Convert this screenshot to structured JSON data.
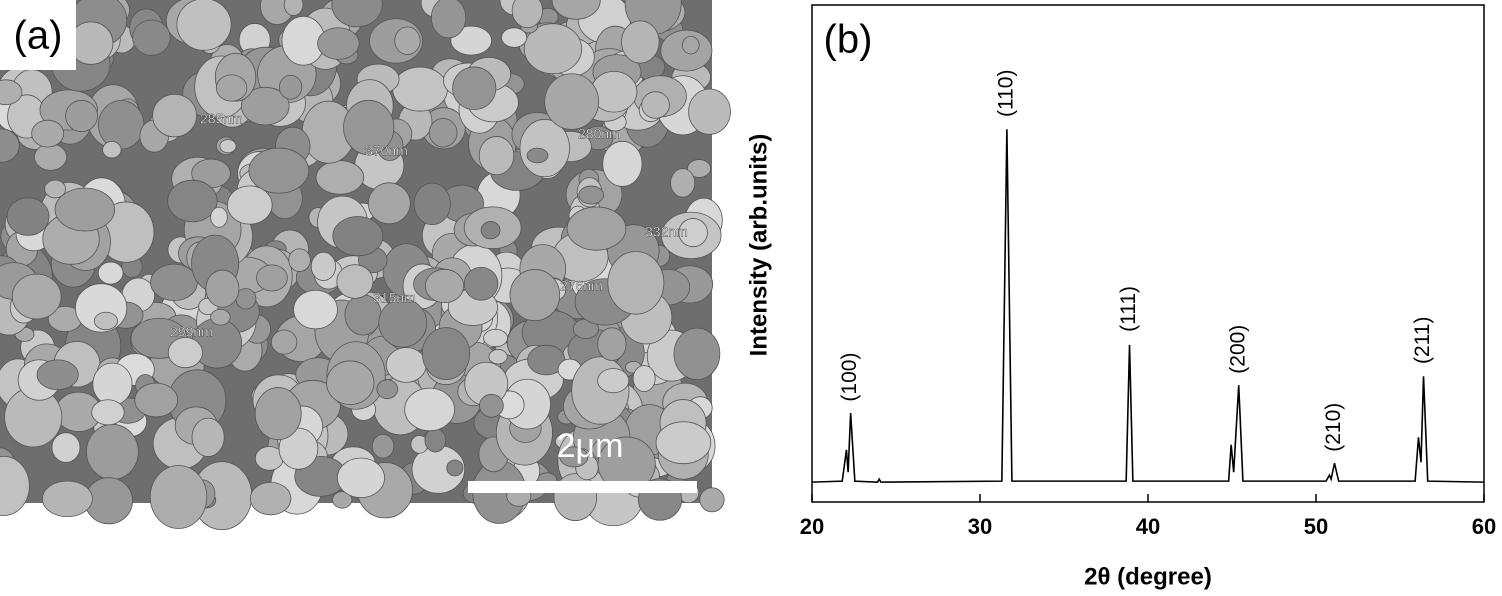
{
  "image_panel": {
    "label": "(a)",
    "scale_bar": "2μm",
    "measurements": [
      "285nm",
      "370nm",
      "280nm",
      "332nm",
      "276nm",
      "315nm",
      "299nm"
    ]
  },
  "chart_data": {
    "type": "line",
    "label": "(b)",
    "x_label": "2θ (degree)",
    "y_label": "Intensity (arb.units)",
    "xlim": [
      20,
      60
    ],
    "xticks": [
      20,
      30,
      40,
      50,
      60
    ],
    "ylim": [
      0,
      100
    ],
    "color": "#000000",
    "x": [
      20,
      21.8,
      22.05,
      22.15,
      22.3,
      22.55,
      23.9,
      24.0,
      24.1,
      31.3,
      31.6,
      31.9,
      38.7,
      38.9,
      39.1,
      44.8,
      44.95,
      45.1,
      45.4,
      45.65,
      50.6,
      50.8,
      50.9,
      51.1,
      51.35,
      55.9,
      56.1,
      56.25,
      56.4,
      56.65,
      60
    ],
    "values": [
      4,
      4.2,
      10.5,
      6,
      17.9,
      4.2,
      4,
      4.6,
      4,
      4.2,
      75,
      4.2,
      4.2,
      31.6,
      4.2,
      4.2,
      11.5,
      6,
      23.5,
      4.2,
      4.2,
      5.4,
      4.6,
      7.8,
      4.2,
      4.2,
      13,
      8,
      25.3,
      4.2,
      4
    ],
    "peak_labels": [
      {
        "label": "(100)",
        "x": 22.3
      },
      {
        "label": "(110)",
        "x": 31.6
      },
      {
        "label": "(111)",
        "x": 38.9
      },
      {
        "label": "(200)",
        "x": 45.4
      },
      {
        "label": "(210)",
        "x": 51.1
      },
      {
        "label": "(211)",
        "x": 56.4
      }
    ]
  }
}
